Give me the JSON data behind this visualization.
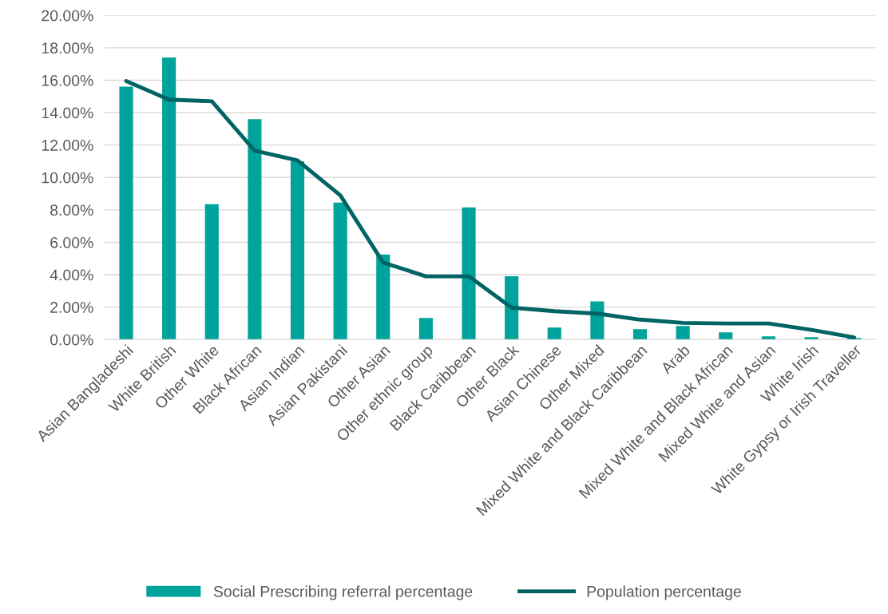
{
  "chart_data": {
    "type": "bar",
    "categories": [
      "Asian Bangladeshi",
      "White British",
      "Other White",
      "Black African",
      "Asian Indian",
      "Asian Pakistani",
      "Other Asian",
      "Other ethnic group",
      "Black Caribbean",
      "Other Black",
      "Asian Chinese",
      "Other Mixed",
      "Mixed White and Black Caribbean",
      "Arab",
      "Mixed White and Black African",
      "Mixed White and Asian",
      "White Irish",
      "White Gypsy or Irish Traveller"
    ],
    "series": [
      {
        "name": "Social Prescribing referral percentage",
        "color": "#00a39b",
        "values": [
          15.6,
          17.4,
          8.35,
          13.6,
          11.0,
          8.45,
          5.25,
          1.33,
          8.15,
          3.9,
          0.74,
          2.35,
          0.64,
          0.84,
          0.44,
          0.2,
          0.15,
          0.1
        ]
      },
      {
        "name": "Population percentage",
        "type": "line",
        "color": "#006464",
        "values": [
          15.95,
          14.8,
          14.7,
          11.65,
          11.05,
          8.9,
          4.75,
          3.9,
          3.9,
          1.97,
          1.75,
          1.6,
          1.23,
          1.03,
          0.99,
          0.99,
          0.6,
          0.13
        ]
      }
    ],
    "ylim": [
      0,
      20
    ],
    "yticks": [
      {
        "value": 0,
        "label": "0.00%"
      },
      {
        "value": 2,
        "label": "2.00%"
      },
      {
        "value": 4,
        "label": "4.00%"
      },
      {
        "value": 6,
        "label": "6.00%"
      },
      {
        "value": 8,
        "label": "8.00%"
      },
      {
        "value": 10,
        "label": "10.00%"
      },
      {
        "value": 12,
        "label": "12.00%"
      },
      {
        "value": 14,
        "label": "14.00%"
      },
      {
        "value": 16,
        "label": "16.00%"
      },
      {
        "value": 18,
        "label": "18.00%"
      },
      {
        "value": 20,
        "label": "20.00%"
      }
    ],
    "grid": "y",
    "legend": "bottom",
    "marker": "none",
    "line_style": "solid"
  }
}
